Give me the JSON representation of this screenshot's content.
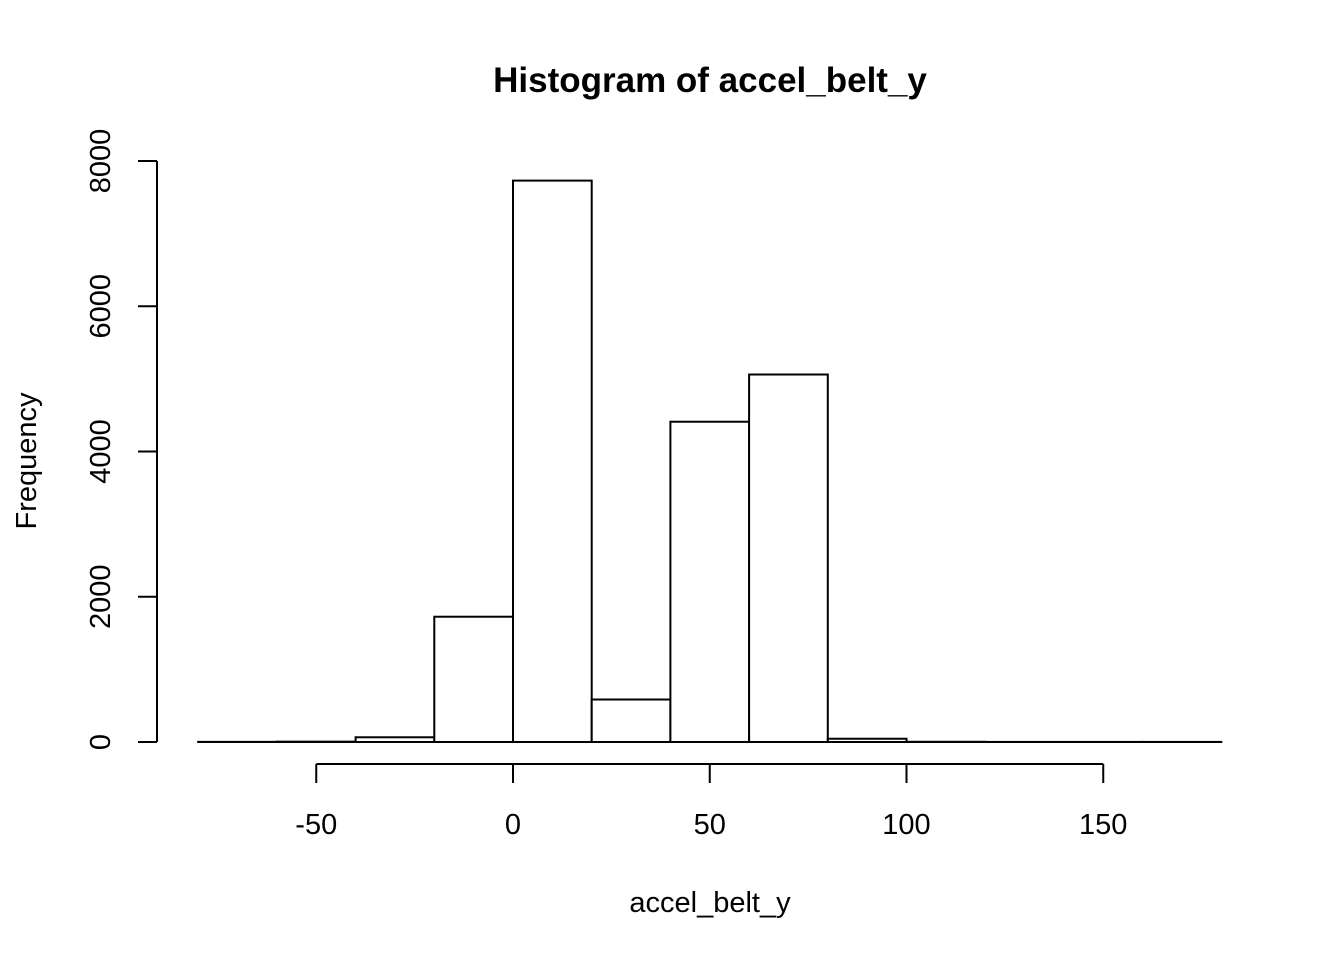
{
  "chart_data": {
    "type": "bar",
    "title": "Histogram of accel_belt_y",
    "xlabel": "accel_belt_y",
    "ylabel": "Frequency",
    "bins": [
      {
        "start": -80,
        "end": -60,
        "count": 2
      },
      {
        "start": -60,
        "end": -40,
        "count": 5
      },
      {
        "start": -40,
        "end": -20,
        "count": 65
      },
      {
        "start": -20,
        "end": 0,
        "count": 1725
      },
      {
        "start": 0,
        "end": 20,
        "count": 7730
      },
      {
        "start": 20,
        "end": 40,
        "count": 585
      },
      {
        "start": 40,
        "end": 60,
        "count": 4410
      },
      {
        "start": 60,
        "end": 80,
        "count": 5060
      },
      {
        "start": 80,
        "end": 100,
        "count": 45
      },
      {
        "start": 100,
        "end": 120,
        "count": 3
      },
      {
        "start": 120,
        "end": 140,
        "count": 1
      },
      {
        "start": 140,
        "end": 160,
        "count": 1
      },
      {
        "start": 160,
        "end": 180,
        "count": 1
      }
    ],
    "x_ticks": [
      -50,
      0,
      50,
      100,
      150
    ],
    "y_ticks": [
      0,
      2000,
      4000,
      6000,
      8000
    ],
    "xlim": [
      -80,
      180
    ],
    "ylim": [
      0,
      8000
    ],
    "grid": false,
    "legend": "none"
  }
}
